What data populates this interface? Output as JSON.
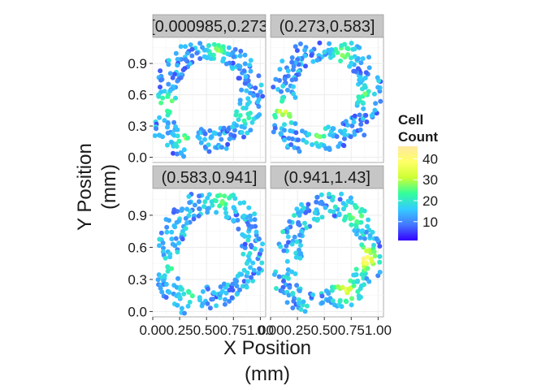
{
  "chart_data": {
    "type": "scatter",
    "subtype": "hexbin-facets",
    "xlabel_lines": [
      "X Position",
      "(mm)"
    ],
    "ylabel_lines": [
      "Y Position",
      "(mm)"
    ],
    "xlim": [
      0,
      1.05
    ],
    "ylim": [
      -0.05,
      1.15
    ],
    "x_ticks": [
      {
        "value": 0.0,
        "label": "0.00"
      },
      {
        "value": 0.25,
        "label": "0.25"
      },
      {
        "value": 0.5,
        "label": "0.50"
      },
      {
        "value": 0.75,
        "label": "0.75"
      },
      {
        "value": 1.0,
        "label": "1.00"
      }
    ],
    "y_ticks": [
      {
        "value": 0.0,
        "label": "0.0"
      },
      {
        "value": 0.3,
        "label": "0.3"
      },
      {
        "value": 0.6,
        "label": "0.6"
      },
      {
        "value": 0.9,
        "label": "0.9"
      }
    ],
    "facets": [
      {
        "label": "[0.000985,0.273",
        "ring": {
          "cx": 0.52,
          "cy": 0.6,
          "rx": 0.4,
          "ry": 0.45
        },
        "base_count": 14,
        "hotspots": [
          [
            0.13,
            0.5,
            30
          ],
          [
            0.6,
            1.02,
            26
          ],
          [
            0.85,
            0.4,
            24
          ],
          [
            0.3,
            0.18,
            26
          ]
        ]
      },
      {
        "label": "(0.273,0.583]",
        "ring": {
          "cx": 0.53,
          "cy": 0.62,
          "rx": 0.4,
          "ry": 0.44
        },
        "base_count": 14,
        "hotspots": [
          [
            0.13,
            0.45,
            34
          ],
          [
            0.68,
            1.0,
            28
          ],
          [
            0.87,
            0.6,
            24
          ],
          [
            0.45,
            0.22,
            26
          ]
        ]
      },
      {
        "label": "(0.583,0.941]",
        "ring": {
          "cx": 0.55,
          "cy": 0.58,
          "rx": 0.39,
          "ry": 0.45
        },
        "base_count": 15,
        "hotspots": [
          [
            0.65,
            1.05,
            28
          ],
          [
            0.78,
            0.45,
            26
          ],
          [
            0.35,
            0.15,
            24
          ],
          [
            0.15,
            0.4,
            22
          ]
        ]
      },
      {
        "label": "(0.941,1.43]",
        "ring": {
          "cx": 0.56,
          "cy": 0.56,
          "rx": 0.38,
          "ry": 0.44
        },
        "base_count": 16,
        "hotspots": [
          [
            0.87,
            0.5,
            42
          ],
          [
            0.7,
            0.2,
            36
          ],
          [
            0.78,
            0.9,
            30
          ],
          [
            0.3,
            0.4,
            22
          ]
        ]
      }
    ],
    "legend": {
      "title_lines": [
        "Cell",
        "Count"
      ],
      "min": 1,
      "max": 46,
      "breaks": [
        10,
        20,
        30,
        40
      ],
      "colors": [
        "#3300ff",
        "#4477ff",
        "#33ccff",
        "#33ff99",
        "#ccff33",
        "#ffff66",
        "#ffe8a0"
      ],
      "position": "right"
    }
  }
}
